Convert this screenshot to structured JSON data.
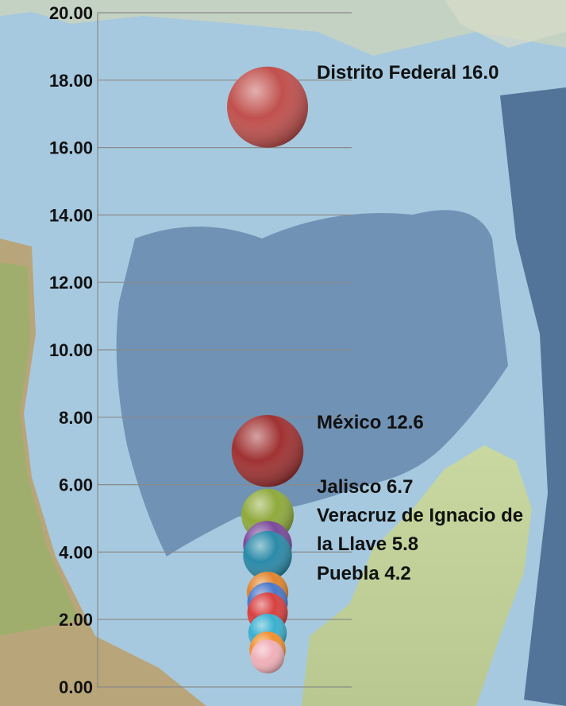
{
  "chart_data": {
    "type": "bubble",
    "title": "",
    "xlabel": "",
    "ylabel": "",
    "ylim": [
      0,
      20
    ],
    "y_tick_step": 2,
    "y_tick_labels": [
      "0.00",
      "2.00",
      "4.00",
      "6.00",
      "8.00",
      "10.00",
      "12.00",
      "14.00",
      "16.00",
      "18.00",
      "20.00"
    ],
    "grid": true,
    "x_axis_visible": false,
    "background": "map of Gulf of Mexico and Yucatán Peninsula",
    "points": [
      {
        "y": 17.2,
        "size": 16.0,
        "color": "#c0504d"
      },
      {
        "y": 7.0,
        "size": 12.6,
        "color": "#a03232"
      },
      {
        "y": 5.1,
        "size": 6.7,
        "color": "#8faa3c"
      },
      {
        "y": 4.2,
        "size": 5.8,
        "color": "#7b4a9a"
      },
      {
        "y": 3.9,
        "size": 5.8,
        "color": "#2a8aa8"
      },
      {
        "y": 2.8,
        "size": 4.2,
        "color": "#e0852e"
      },
      {
        "y": 2.5,
        "size": 4.0,
        "color": "#4a78c8"
      },
      {
        "y": 2.2,
        "size": 4.0,
        "color": "#d84040"
      },
      {
        "y": 1.6,
        "size": 3.6,
        "color": "#3ab0d0"
      },
      {
        "y": 1.1,
        "size": 3.2,
        "color": "#f09030"
      },
      {
        "y": 0.9,
        "size": 2.8,
        "color": "#f0b0b8"
      }
    ],
    "annotations": [
      {
        "text": "Distrito Federal 16.0"
      },
      {
        "text": "México 12.6"
      },
      {
        "text": "Jalisco  6.7"
      },
      {
        "text": "Veracruz de Ignacio de"
      },
      {
        "text": "la Llave 5.8"
      },
      {
        "text": "Puebla   4.2"
      }
    ]
  }
}
